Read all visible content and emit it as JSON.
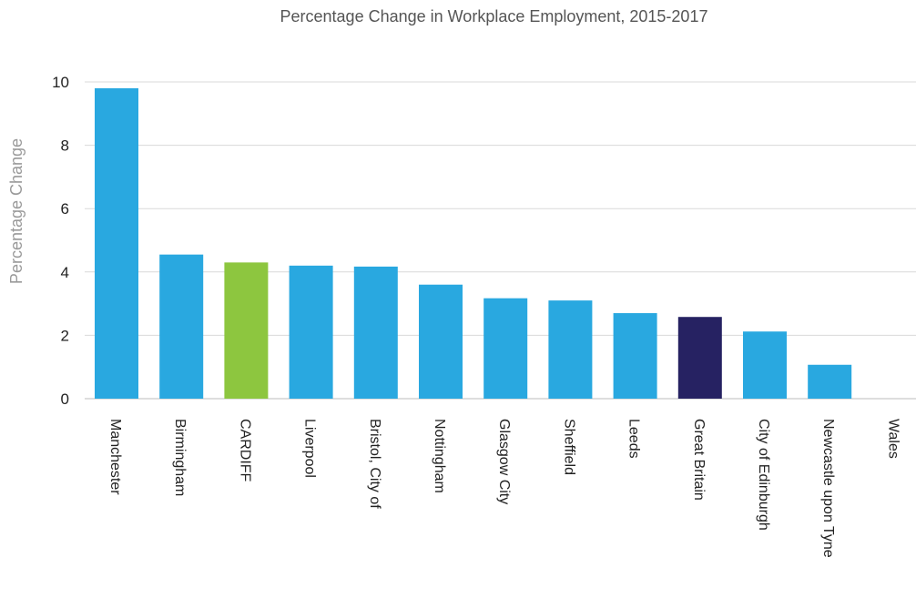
{
  "chart_data": {
    "type": "bar",
    "title": "Percentage Change in Workplace Employment, 2015-2017",
    "xlabel": "",
    "ylabel": "Percentage Change",
    "ylim": [
      0,
      10
    ],
    "yticks": [
      0,
      2,
      4,
      6,
      8,
      10
    ],
    "grid": true,
    "categories": [
      "Manchester",
      "Birmingham",
      "CARDIFF",
      "Liverpool",
      "Bristol, City of",
      "Nottingham",
      "Glasgow City",
      "Sheffield",
      "Leeds",
      "Great Britain",
      "City of Edinburgh",
      "Newcastle upon Tyne",
      "Wales"
    ],
    "values": [
      9.8,
      4.55,
      4.3,
      4.2,
      4.17,
      3.6,
      3.17,
      3.1,
      2.7,
      2.58,
      2.12,
      1.07,
      0
    ],
    "colors": [
      "#29a8e0",
      "#29a8e0",
      "#8dc63f",
      "#29a8e0",
      "#29a8e0",
      "#29a8e0",
      "#29a8e0",
      "#29a8e0",
      "#29a8e0",
      "#262262",
      "#29a8e0",
      "#29a8e0",
      "#29a8e0"
    ]
  }
}
